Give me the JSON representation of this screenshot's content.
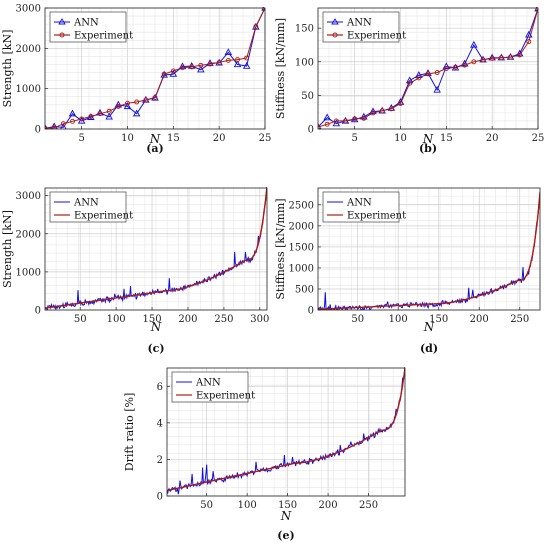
{
  "legend": {
    "ann": "ANN",
    "experiment": "Experiment"
  },
  "colors": {
    "ann": "#1010e0",
    "experiment": "#b01a10",
    "grid": "#e6e6e6"
  },
  "chart_data": [
    {
      "id": "a",
      "type": "line",
      "panel_label": "(a)",
      "xlabel": "N",
      "ylabel": "Strength [kN]",
      "xlim": [
        1,
        25
      ],
      "ylim": [
        0,
        3000
      ],
      "xticks": [
        5,
        10,
        15,
        20,
        25
      ],
      "yticks": [
        0,
        1000,
        2000,
        3000
      ],
      "grid": true,
      "legend_position": "top-left",
      "x": [
        1,
        2,
        3,
        4,
        5,
        6,
        7,
        8,
        9,
        10,
        11,
        12,
        13,
        14,
        15,
        16,
        17,
        18,
        19,
        20,
        21,
        22,
        23,
        24,
        25
      ],
      "series": [
        {
          "name": "ANN",
          "marker": "triangle",
          "values": [
            20,
            60,
            40,
            380,
            200,
            290,
            400,
            300,
            600,
            560,
            380,
            720,
            770,
            1340,
            1360,
            1550,
            1560,
            1470,
            1630,
            1640,
            1900,
            1600,
            1560,
            2530,
            3000
          ]
        },
        {
          "name": "Experiment",
          "marker": "circle",
          "values": [
            20,
            30,
            130,
            190,
            250,
            310,
            380,
            440,
            560,
            640,
            670,
            720,
            780,
            1360,
            1440,
            1520,
            1540,
            1580,
            1610,
            1650,
            1700,
            1720,
            1760,
            2540,
            3000
          ]
        }
      ]
    },
    {
      "id": "b",
      "type": "line",
      "panel_label": "(b)",
      "xlabel": "N",
      "ylabel": "Stiffness [kN/mm]",
      "xlim": [
        1,
        25
      ],
      "ylim": [
        0,
        180
      ],
      "xticks": [
        5,
        10,
        15,
        20,
        25
      ],
      "yticks": [
        0,
        50,
        100,
        150
      ],
      "grid": true,
      "legend_position": "top-left",
      "x": [
        1,
        2,
        3,
        4,
        5,
        6,
        7,
        8,
        9,
        10,
        11,
        12,
        13,
        14,
        15,
        16,
        17,
        18,
        19,
        20,
        21,
        22,
        23,
        24,
        25
      ],
      "series": [
        {
          "name": "ANN",
          "marker": "triangle",
          "values": [
            3,
            17,
            8,
            12,
            14,
            18,
            26,
            27,
            31,
            40,
            72,
            80,
            83,
            58,
            93,
            91,
            97,
            125,
            103,
            106,
            106,
            107,
            112,
            140,
            179
          ]
        },
        {
          "name": "Experiment",
          "marker": "circle",
          "values": [
            3,
            7,
            12,
            12,
            15,
            16,
            24,
            27,
            30,
            38,
            68,
            76,
            82,
            84,
            90,
            92,
            95,
            100,
            103,
            105,
            106,
            107,
            110,
            130,
            179
          ]
        }
      ]
    },
    {
      "id": "c",
      "type": "line",
      "panel_label": "(c)",
      "xlabel": "N",
      "ylabel": "Strength [kN]",
      "xlim": [
        1,
        310
      ],
      "ylim": [
        0,
        3200
      ],
      "xticks": [
        50,
        100,
        150,
        200,
        250,
        300
      ],
      "yticks": [
        0,
        1000,
        2000,
        3000
      ],
      "grid": true,
      "legend_position": "top-left",
      "curve": {
        "count": 310,
        "start": 50,
        "mid": 500,
        "end_before_tail": 1300,
        "final": 3250
      },
      "series": [
        {
          "name": "ANN"
        },
        {
          "name": "Experiment"
        }
      ]
    },
    {
      "id": "d",
      "type": "line",
      "panel_label": "(d)",
      "xlabel": "N",
      "ylabel": "Stiffness [kN/mm]",
      "xlim": [
        1,
        275
      ],
      "ylim": [
        0,
        2900
      ],
      "xticks": [
        50,
        100,
        150,
        200,
        250
      ],
      "yticks": [
        0,
        500,
        1000,
        1500,
        2000,
        2500
      ],
      "grid": true,
      "legend_position": "top-left",
      "curve": {
        "count": 275,
        "start": 15,
        "mid": 150,
        "end_before_tail": 700,
        "final": 2800
      },
      "series": [
        {
          "name": "ANN"
        },
        {
          "name": "Experiment"
        }
      ]
    },
    {
      "id": "e",
      "type": "line",
      "panel_label": "(e)",
      "xlabel": "N",
      "ylabel": "Drift ratio [%]",
      "xlim": [
        1,
        295
      ],
      "ylim": [
        0,
        7
      ],
      "xticks": [
        50,
        100,
        150,
        200,
        250
      ],
      "yticks": [
        0,
        2,
        4,
        6
      ],
      "grid": true,
      "legend_position": "top-left",
      "curve": {
        "count": 295,
        "start": 0.3,
        "mid": 1.8,
        "end_before_tail": 3.6,
        "final": 7.0
      },
      "series": [
        {
          "name": "ANN"
        },
        {
          "name": "Experiment"
        }
      ]
    }
  ]
}
